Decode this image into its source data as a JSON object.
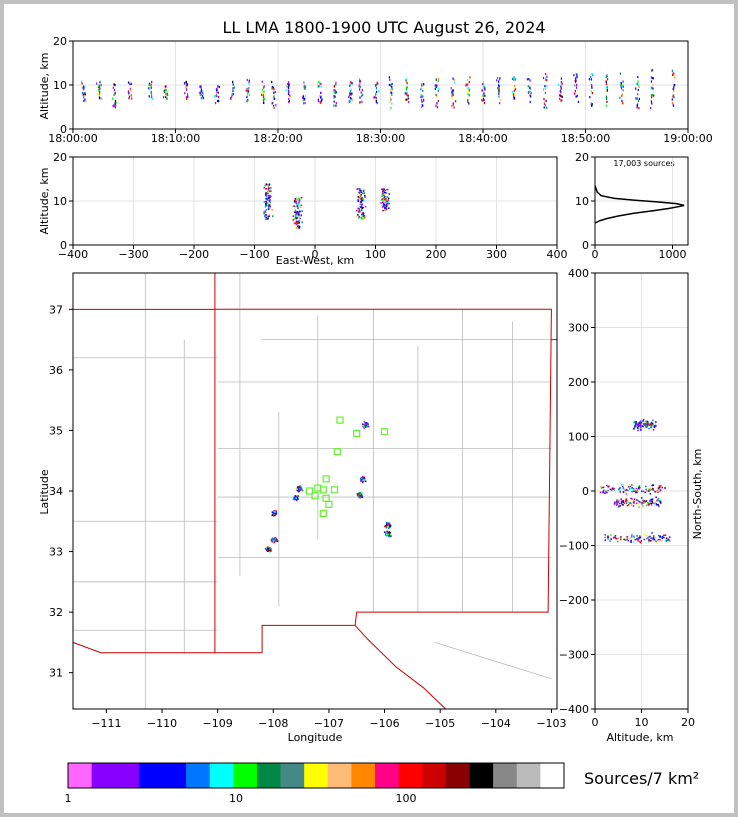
{
  "chart_data": {
    "type": "scatter",
    "title": "LL LMA 1800-1900 UTC August 26, 2024",
    "time_height": {
      "ylabel": "Altitude, km",
      "ylim": [
        0,
        20
      ],
      "yticks": [
        "0",
        "10",
        "20"
      ],
      "xticks": [
        "18:00:00",
        "18:10:00",
        "18:20:00",
        "18:30:00",
        "18:40:00",
        "18:50:00",
        "19:00:00"
      ],
      "bursts": [
        {
          "t_min": 1.0,
          "alt": [
            6,
            11
          ]
        },
        {
          "t_min": 2.5,
          "alt": [
            7,
            11
          ]
        },
        {
          "t_min": 4.0,
          "alt": [
            5,
            11
          ]
        },
        {
          "t_min": 5.5,
          "alt": [
            7,
            11
          ]
        },
        {
          "t_min": 7.5,
          "alt": [
            7,
            11
          ]
        },
        {
          "t_min": 9.0,
          "alt": [
            7,
            10
          ]
        },
        {
          "t_min": 11.0,
          "alt": [
            7,
            11
          ]
        },
        {
          "t_min": 12.5,
          "alt": [
            7,
            10
          ]
        },
        {
          "t_min": 14.0,
          "alt": [
            6,
            10
          ]
        },
        {
          "t_min": 15.5,
          "alt": [
            7,
            11
          ]
        },
        {
          "t_min": 17.0,
          "alt": [
            6,
            12
          ]
        },
        {
          "t_min": 18.5,
          "alt": [
            6,
            11
          ]
        },
        {
          "t_min": 19.5,
          "alt": [
            5,
            11
          ]
        },
        {
          "t_min": 21.0,
          "alt": [
            6,
            11
          ]
        },
        {
          "t_min": 22.5,
          "alt": [
            6,
            11
          ]
        },
        {
          "t_min": 24.0,
          "alt": [
            6,
            11
          ]
        },
        {
          "t_min": 25.5,
          "alt": [
            5,
            11
          ]
        },
        {
          "t_min": 27.0,
          "alt": [
            6,
            11
          ]
        },
        {
          "t_min": 28.0,
          "alt": [
            6,
            12
          ]
        },
        {
          "t_min": 29.5,
          "alt": [
            6,
            11
          ]
        },
        {
          "t_min": 31.0,
          "alt": [
            5,
            12
          ]
        },
        {
          "t_min": 32.5,
          "alt": [
            6,
            12
          ]
        },
        {
          "t_min": 34.0,
          "alt": [
            5,
            11
          ]
        },
        {
          "t_min": 35.5,
          "alt": [
            5,
            12
          ]
        },
        {
          "t_min": 37.0,
          "alt": [
            5,
            12
          ]
        },
        {
          "t_min": 38.5,
          "alt": [
            6,
            12
          ]
        },
        {
          "t_min": 40.0,
          "alt": [
            6,
            11
          ]
        },
        {
          "t_min": 41.5,
          "alt": [
            6,
            12
          ]
        },
        {
          "t_min": 43.0,
          "alt": [
            7,
            12
          ]
        },
        {
          "t_min": 44.5,
          "alt": [
            6,
            12
          ]
        },
        {
          "t_min": 46.0,
          "alt": [
            5,
            13
          ]
        },
        {
          "t_min": 47.5,
          "alt": [
            6,
            12
          ]
        },
        {
          "t_min": 49.0,
          "alt": [
            6,
            13
          ]
        },
        {
          "t_min": 50.5,
          "alt": [
            5,
            13
          ]
        },
        {
          "t_min": 52.0,
          "alt": [
            5,
            13
          ]
        },
        {
          "t_min": 53.5,
          "alt": [
            5,
            13
          ]
        },
        {
          "t_min": 55.0,
          "alt": [
            5,
            13
          ]
        },
        {
          "t_min": 56.5,
          "alt": [
            5,
            14
          ]
        },
        {
          "t_min": 58.5,
          "alt": [
            5,
            14
          ]
        }
      ]
    },
    "ew_height": {
      "xlabel": "East-West, km",
      "ylabel": "Altitude, km",
      "xlim": [
        -400,
        400
      ],
      "ylim": [
        0,
        20
      ],
      "xticks": [
        "−400",
        "−300",
        "−200",
        "−100",
        "0",
        "100",
        "200",
        "300",
        "400"
      ],
      "yticks": [
        "0",
        "10",
        "20"
      ],
      "clusters": [
        {
          "x": -80,
          "alt_lo": 6,
          "alt_hi": 14
        },
        {
          "x": -30,
          "alt_lo": 4,
          "alt_hi": 11
        },
        {
          "x": 75,
          "alt_lo": 6,
          "alt_hi": 13
        },
        {
          "x": 115,
          "alt_lo": 8,
          "alt_hi": 13
        }
      ]
    },
    "alt_hist": {
      "annotation": "17,003 sources",
      "xlim": [
        0,
        1200
      ],
      "ylim": [
        0,
        20
      ],
      "xticks": [
        "0",
        "1000"
      ],
      "yticks": [
        "0",
        "10",
        "20"
      ],
      "profile": [
        [
          0,
          5
        ],
        [
          60,
          5.5
        ],
        [
          150,
          6
        ],
        [
          300,
          6.6
        ],
        [
          500,
          7.2
        ],
        [
          750,
          7.8
        ],
        [
          950,
          8.3
        ],
        [
          1100,
          8.8
        ],
        [
          1150,
          9.0
        ],
        [
          1050,
          9.4
        ],
        [
          800,
          9.8
        ],
        [
          500,
          10.2
        ],
        [
          250,
          10.6
        ],
        [
          80,
          11.2
        ],
        [
          30,
          12.0
        ],
        [
          0,
          13.5
        ]
      ]
    },
    "map": {
      "xlabel": "Longitude",
      "ylabel": "Latitude",
      "xlim": [
        -111.6,
        -102.9
      ],
      "ylim": [
        30.4,
        37.6
      ],
      "xticks": [
        "−111",
        "−110",
        "−109",
        "−108",
        "−107",
        "−106",
        "−105",
        "−104",
        "−103"
      ],
      "yticks": [
        "31",
        "32",
        "33",
        "34",
        "35",
        "36",
        "37"
      ],
      "stations": [
        {
          "lon": -106.8,
          "lat": 35.17
        },
        {
          "lon": -106.5,
          "lat": 34.95
        },
        {
          "lon": -106.0,
          "lat": 34.98
        },
        {
          "lon": -106.85,
          "lat": 34.65
        },
        {
          "lon": -107.05,
          "lat": 34.2
        },
        {
          "lon": -107.2,
          "lat": 34.05
        },
        {
          "lon": -107.35,
          "lat": 34.0
        },
        {
          "lon": -107.1,
          "lat": 34.02
        },
        {
          "lon": -106.9,
          "lat": 34.02
        },
        {
          "lon": -107.25,
          "lat": 33.92
        },
        {
          "lon": -107.05,
          "lat": 33.88
        },
        {
          "lon": -107.0,
          "lat": 33.78
        },
        {
          "lon": -107.1,
          "lat": 33.63
        }
      ],
      "storms": [
        {
          "lon": -106.35,
          "lat": 35.1
        },
        {
          "lon": -106.4,
          "lat": 34.2
        },
        {
          "lon": -106.45,
          "lat": 33.95
        },
        {
          "lon": -107.55,
          "lat": 34.05
        },
        {
          "lon": -107.6,
          "lat": 33.9
        },
        {
          "lon": -108.0,
          "lat": 33.65
        },
        {
          "lon": -108.0,
          "lat": 33.2
        },
        {
          "lon": -108.1,
          "lat": 33.05
        },
        {
          "lon": -105.95,
          "lat": 33.45
        },
        {
          "lon": -105.95,
          "lat": 33.3
        }
      ]
    },
    "ns_height": {
      "xlabel": "Altitude, km",
      "ylabel": "North-South, km",
      "xlim": [
        0,
        20
      ],
      "ylim": [
        -400,
        400
      ],
      "xticks": [
        "0",
        "10",
        "20"
      ],
      "yticks": [
        "−400",
        "−300",
        "−200",
        "−100",
        "0",
        "100",
        "200",
        "300",
        "400"
      ],
      "clusters": [
        {
          "y": 123,
          "alt_lo": 8,
          "alt_hi": 13
        },
        {
          "y": 5,
          "alt_lo": 1,
          "alt_hi": 15
        },
        {
          "y": -20,
          "alt_lo": 4,
          "alt_hi": 14
        },
        {
          "y": -85,
          "alt_lo": 2,
          "alt_hi": 16
        }
      ]
    },
    "colorbar": {
      "label": "Sources/7 km²",
      "ticks": [
        "1",
        "10",
        "100"
      ],
      "colors": [
        "#ff66ff",
        "#8800ff",
        "#8800ff",
        "#0000ff",
        "#0000ff",
        "#0077ff",
        "#00ffff",
        "#00ff00",
        "#008844",
        "#448888",
        "#ffff00",
        "#ffbb77",
        "#ff8800",
        "#ff0088",
        "#ff0000",
        "#cc0000",
        "#880000",
        "#000000",
        "#888888",
        "#bbbbbb",
        "#ffffff"
      ]
    }
  }
}
